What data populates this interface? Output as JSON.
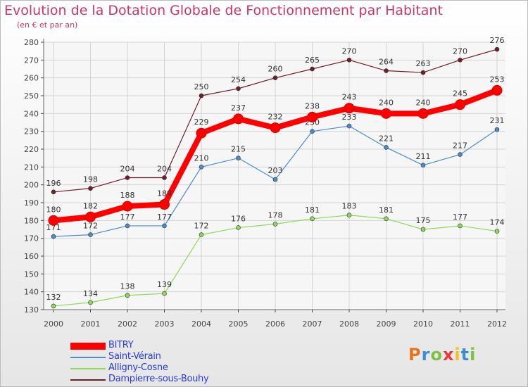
{
  "title": "Evolution de la Dotation Globale de Fonctionnement par Habitant",
  "subtitle": "(en € et par an)",
  "brand": {
    "text": "Proxiti",
    "colors": [
      "#e8731e",
      "#3a8fd8",
      "#7cc242",
      "#e83a3a",
      "#f2c21a",
      "#3a8fd8",
      "#7cc242"
    ]
  },
  "chart_data": {
    "type": "line",
    "x": [
      "2000",
      "2001",
      "2002",
      "2003",
      "2004",
      "2005",
      "2006",
      "2007",
      "2008",
      "2009",
      "2010",
      "2011",
      "2012"
    ],
    "ylim": [
      130,
      280
    ],
    "yticks": [
      130,
      140,
      150,
      160,
      170,
      180,
      190,
      200,
      210,
      220,
      230,
      240,
      250,
      260,
      270,
      280
    ],
    "grid": true,
    "legend_position": "bottom-left",
    "series": [
      {
        "name": "BITRY",
        "color": "#ff0000",
        "values": [
          180,
          182,
          188,
          189,
          229,
          237,
          232,
          238,
          243,
          240,
          240,
          245,
          253
        ]
      },
      {
        "name": "Saint-Vérain",
        "color": "#4a8ccc",
        "values": [
          171,
          172,
          177,
          177,
          210,
          215,
          203,
          230,
          233,
          221,
          211,
          217,
          231
        ]
      },
      {
        "name": "Alligny-Cosne",
        "color": "#8fd85a",
        "values": [
          132,
          134,
          138,
          139,
          172,
          176,
          178,
          181,
          183,
          181,
          175,
          177,
          174
        ]
      },
      {
        "name": "Dampierre-sous-Bouhy",
        "color": "#6e1f28",
        "values": [
          196,
          198,
          204,
          204,
          250,
          254,
          260,
          265,
          270,
          264,
          263,
          270,
          276
        ]
      }
    ]
  }
}
